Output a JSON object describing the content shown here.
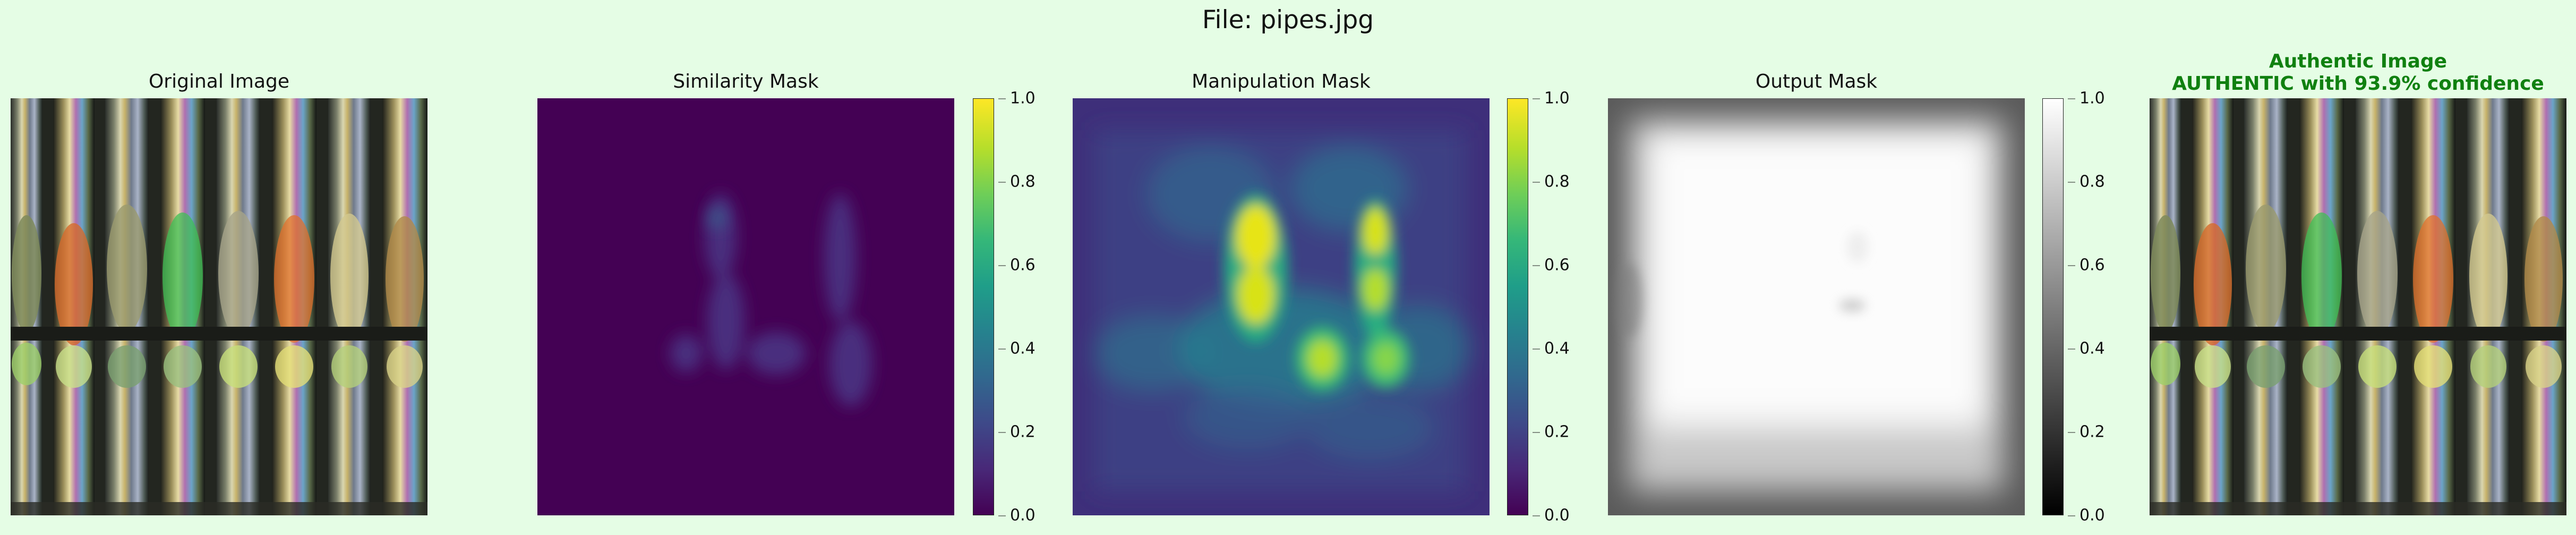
{
  "figure_title": "File: pipes.jpg",
  "panels": {
    "original": {
      "title": "Original Image"
    },
    "similarity": {
      "title": "Similarity Mask"
    },
    "manipulation": {
      "title": "Manipulation Mask"
    },
    "output": {
      "title": "Output Mask"
    },
    "result": {
      "title_line1": "Authentic Image",
      "title_line2": "AUTHENTIC with 93.9% confidence"
    }
  },
  "colorbars": {
    "similarity": {
      "colormap": "viridis",
      "ticks": [
        "0.0",
        "0.2",
        "0.4",
        "0.6",
        "0.8",
        "1.0"
      ]
    },
    "manipulation": {
      "colormap": "viridis",
      "ticks": [
        "0.0",
        "0.2",
        "0.4",
        "0.6",
        "0.8",
        "1.0"
      ]
    },
    "output": {
      "colormap": "gray",
      "ticks": [
        "0.0",
        "0.2",
        "0.4",
        "0.6",
        "0.8",
        "1.0"
      ]
    }
  },
  "colors": {
    "background": "#e5fde5",
    "verdict_green": "#108010",
    "viridis_low": "#440154",
    "viridis_high": "#fde725"
  }
}
